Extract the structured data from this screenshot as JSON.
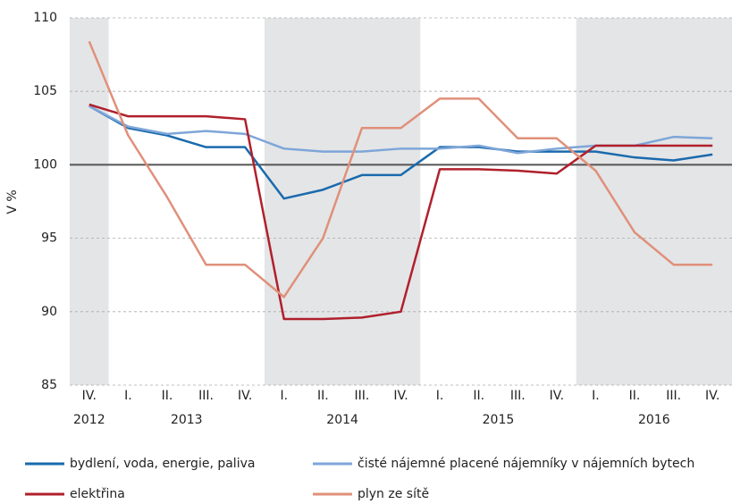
{
  "chart_data": {
    "type": "line",
    "y_label": "V %",
    "categories": [
      "IV.",
      "I.",
      "II.",
      "III.",
      "IV.",
      "I.",
      "II.",
      "III.",
      "IV.",
      "I.",
      "II.",
      "III.",
      "IV.",
      "I.",
      "II.",
      "III.",
      "IV."
    ],
    "year_groups": [
      {
        "label": "2012",
        "count": 1,
        "shaded": true
      },
      {
        "label": "2013",
        "count": 4,
        "shaded": false
      },
      {
        "label": "2014",
        "count": 4,
        "shaded": true
      },
      {
        "label": "2015",
        "count": 4,
        "shaded": false
      },
      {
        "label": "2016",
        "count": 4,
        "shaded": true
      }
    ],
    "series": [
      {
        "name": "bydlení, voda, energie, paliva",
        "color": "#1a6aad",
        "values": [
          104.0,
          102.5,
          102.0,
          101.2,
          101.2,
          97.7,
          98.3,
          99.3,
          99.3,
          101.2,
          101.2,
          100.9,
          100.9,
          100.9,
          100.5,
          100.3,
          100.7
        ]
      },
      {
        "name": "čisté nájemné placené nájemníky v nájemních bytech",
        "color": "#7ea6d8",
        "values": [
          104.0,
          102.6,
          102.1,
          102.3,
          102.1,
          101.1,
          100.9,
          100.9,
          101.1,
          101.1,
          101.3,
          100.8,
          101.1,
          101.3,
          101.3,
          101.9,
          101.8
        ]
      },
      {
        "name": "elektřina",
        "color": "#b0202c",
        "values": [
          104.1,
          103.3,
          103.3,
          103.3,
          103.1,
          89.5,
          89.5,
          89.6,
          90.0,
          99.7,
          99.7,
          99.6,
          99.4,
          101.3,
          101.3,
          101.3,
          101.3
        ]
      },
      {
        "name": "plyn ze sítě",
        "color": "#e0907a",
        "values": [
          108.4,
          102.0,
          97.8,
          93.2,
          93.2,
          91.0,
          95.0,
          102.5,
          102.5,
          104.5,
          104.5,
          101.8,
          101.8,
          99.6,
          95.4,
          93.2,
          93.2
        ]
      }
    ],
    "ylim": [
      85,
      110
    ],
    "yticks": [
      85,
      90,
      95,
      100,
      105,
      110
    ],
    "grid": true,
    "reference_line": 100
  }
}
